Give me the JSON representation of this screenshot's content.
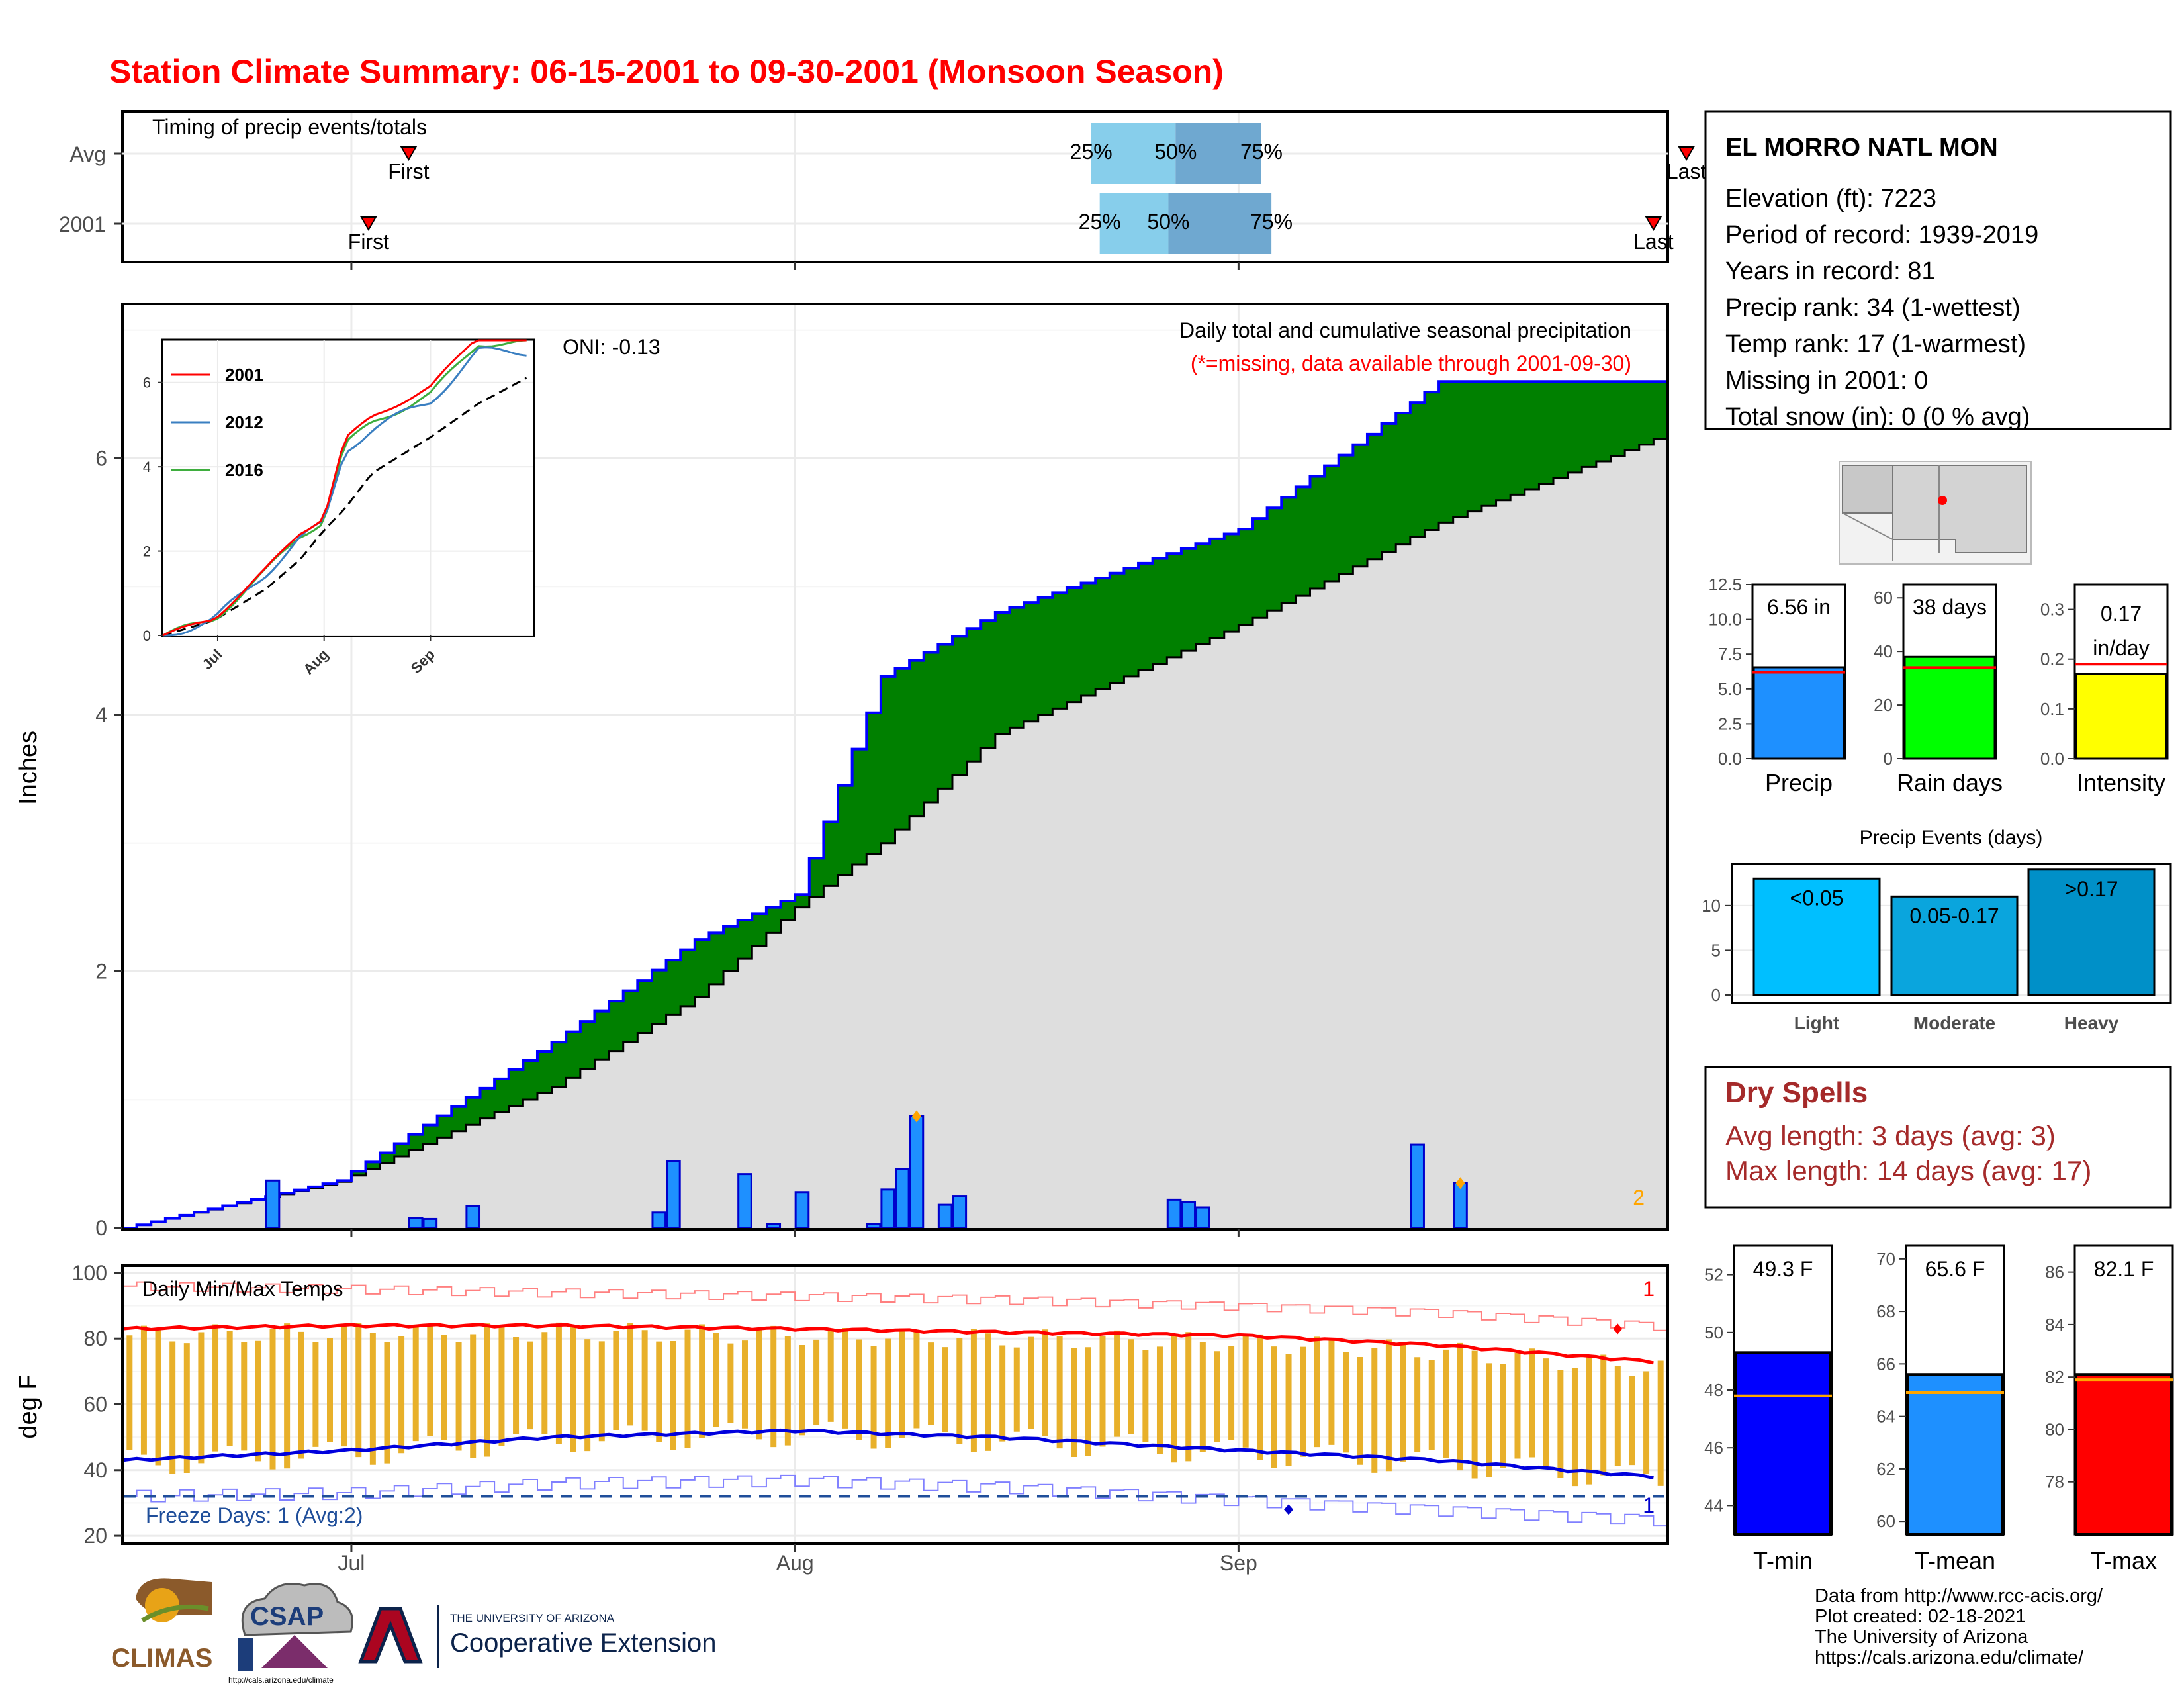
{
  "page": {
    "title": "Station Climate Summary: 06-15-2001 to 09-30-2001 (Monsoon Season)"
  },
  "timing": {
    "title": "Timing of precip events/totals",
    "rows": [
      {
        "label": "Avg",
        "first_label": "First",
        "last_label": "Last",
        "p25": "25%",
        "p50": "50%",
        "p75": "75%",
        "first": 19.5,
        "q25": 67.2,
        "q50": 73.1,
        "q75": 79.1,
        "last": 108.8
      },
      {
        "label": "2001",
        "first_label": "First",
        "last_label": "Last",
        "p25": "25%",
        "p50": "50%",
        "p75": "75%",
        "first": 16.7,
        "q25": 67.8,
        "q50": 72.6,
        "q75": 79.8,
        "last": 106.5
      }
    ]
  },
  "station": {
    "name": "EL MORRO NATL MON",
    "lines": [
      "Elevation (ft): 7223",
      "Period of record: 1939-2019",
      "Years in record: 81",
      "Precip rank: 34 (1-wettest)",
      "Temp rank: 17 (1-warmest)",
      "Missing in 2001: 0",
      "Total snow (in): 0 (0 % avg)"
    ]
  },
  "main_chart": {
    "title": "Daily total and cumulative seasonal precipitation",
    "subtitle": "(*=missing, data available through 2001-09-30)",
    "oni": "ONI: -0.13",
    "ylabel": "Inches",
    "yticks": [
      "0",
      "2",
      "4",
      "6"
    ],
    "xticks": [
      "Jul",
      "Aug",
      "Sep"
    ],
    "corner_note": "2"
  },
  "inset": {
    "yticks": [
      "0",
      "2",
      "4",
      "6"
    ],
    "xticks": [
      "Jul",
      "Aug",
      "Sep"
    ],
    "legend": [
      {
        "name": "2001",
        "color": "#ff0000"
      },
      {
        "name": "2012",
        "color": "#3a7fc1"
      },
      {
        "name": "2016",
        "color": "#3fae3f"
      }
    ]
  },
  "temp_chart": {
    "title": "Daily Min/Max Temps",
    "ylabel": "deg F",
    "yticks": [
      "20",
      "40",
      "60",
      "80",
      "100"
    ],
    "freeze_label": "Freeze Days: 1 (Avg:2)",
    "corner_top": "1",
    "corner_bottom": "1"
  },
  "stats": {
    "precip": {
      "value_label": "6.56 in",
      "axis_label": "Precip",
      "yticks": [
        "0.0",
        "2.5",
        "5.0",
        "7.5",
        "10.0",
        "12.5"
      ]
    },
    "raindays": {
      "value_label": "38 days",
      "axis_label": "Rain days",
      "yticks": [
        "0",
        "20",
        "40",
        "60"
      ]
    },
    "intensity": {
      "value_label": "0.17",
      "value_label2": "in/day",
      "axis_label": "Intensity",
      "yticks": [
        "0.0",
        "0.1",
        "0.2",
        "0.3"
      ]
    }
  },
  "events": {
    "title": "Precip Events (days)",
    "yticks": [
      "0",
      "5",
      "10"
    ],
    "bars": [
      {
        "label": "<0.05",
        "cat": "Light"
      },
      {
        "label": "0.05-0.17",
        "cat": "Moderate"
      },
      {
        "label": ">0.17",
        "cat": "Heavy"
      }
    ]
  },
  "dry_spells": {
    "title": "Dry Spells",
    "avg": "Avg length: 3 days (avg: 3)",
    "max": "Max length: 14 days (avg: 17)"
  },
  "temp_bars": {
    "tmin": {
      "value_label": "49.3 F",
      "axis_label": "T-min",
      "yticks": [
        "44",
        "46",
        "48",
        "50",
        "52"
      ]
    },
    "tmean": {
      "value_label": "65.6 F",
      "axis_label": "T-mean",
      "yticks": [
        "60",
        "62",
        "64",
        "66",
        "68",
        "70"
      ]
    },
    "tmax": {
      "value_label": "82.1 F",
      "axis_label": "T-max",
      "yticks": [
        "78",
        "80",
        "82",
        "84",
        "86"
      ]
    }
  },
  "footer": {
    "lines": [
      "Data from http://www.rcc-acis.org/",
      "Plot created: 02-18-2021",
      "The University of Arizona",
      "https://cals.arizona.edu/climate/"
    ],
    "climas": "CLIMAS",
    "csap": "CSAP",
    "csap_url": "http://cals.arizona.edu/climate",
    "ua_line1": "THE UNIVERSITY OF ARIZONA",
    "ua_line2": "Cooperative Extension"
  },
  "chart_data": [
    {
      "type": "area",
      "title": "Daily total and cumulative seasonal precipitation",
      "ylabel": "Inches",
      "xlim": [
        "2001-06-15",
        "2001-09-30"
      ],
      "ylim": [
        0,
        7.2
      ],
      "x": [
        "2001-06-15",
        "2001-06-30",
        "2001-07-15",
        "2001-07-25",
        "2001-08-01",
        "2001-08-07",
        "2001-08-15",
        "2001-09-01",
        "2001-09-15",
        "2001-09-30"
      ],
      "series": [
        {
          "name": "",
          "values": [
            0.0,
            0.37,
            1.45,
            2.25,
            2.6,
            4.3,
            4.8,
            5.45,
            6.6,
            6.6
          ]
        },
        {
          "name": "",
          "values": [
            0.0,
            0.36,
            1.1,
            1.8,
            2.5,
            3.0,
            3.85,
            4.7,
            5.5,
            6.15
          ]
        }
      ],
      "daily_bars": {
        "x": [
          "2001-06-25",
          "2001-07-05",
          "2001-07-06",
          "2001-07-09",
          "2001-07-22",
          "2001-07-23",
          "2001-07-28",
          "2001-07-30",
          "2001-08-01",
          "2001-08-06",
          "2001-08-07",
          "2001-08-08",
          "2001-08-09",
          "2001-08-11",
          "2001-08-12",
          "2001-08-27",
          "2001-08-28",
          "2001-08-29",
          "2001-09-13",
          "2001-09-16"
        ],
        "values": [
          0.37,
          0.08,
          0.07,
          0.17,
          0.12,
          0.52,
          0.42,
          0.03,
          0.28,
          0.03,
          0.3,
          0.46,
          0.87,
          0.18,
          0.25,
          0.22,
          0.2,
          0.16,
          0.65,
          0.35
        ]
      }
    },
    {
      "type": "line",
      "title": "Daily Min/Max Temps",
      "ylabel": "deg F",
      "xlim": [
        "2001-06-15",
        "2001-09-30"
      ],
      "ylim": [
        18,
        102
      ],
      "x": [
        "2001-06-15",
        "2001-07-01",
        "2001-07-15",
        "2001-08-01",
        "2001-08-15",
        "2001-09-01",
        "2001-09-15",
        "2001-09-30"
      ],
      "series": [
        {
          "name": "",
          "values": [
            83,
            84,
            84,
            83,
            82,
            81,
            78,
            73
          ]
        },
        {
          "name": "",
          "values": [
            43,
            46,
            50,
            52,
            50,
            46,
            43,
            38
          ]
        },
        {
          "name": "",
          "values": [
            96,
            95,
            94,
            93,
            92,
            90,
            88,
            84
          ]
        },
        {
          "name": "",
          "values": [
            32,
            33,
            36,
            37,
            35,
            31,
            28,
            25
          ]
        }
      ],
      "freeze_line": 32
    },
    {
      "type": "bar",
      "categories": [
        "Precip",
        "Rain days",
        "Intensity"
      ],
      "values": [
        6.56,
        38,
        0.17
      ],
      "averages": [
        6.2,
        34,
        0.19
      ]
    },
    {
      "type": "bar",
      "title": "Precip Events (days)",
      "categories": [
        "Light",
        "Moderate",
        "Heavy"
      ],
      "values": [
        13,
        11,
        14
      ]
    },
    {
      "type": "bar",
      "categories": [
        "T-min",
        "T-mean",
        "T-max"
      ],
      "values": [
        49.3,
        65.6,
        82.1
      ],
      "averages": [
        47.8,
        64.9,
        81.9
      ]
    }
  ]
}
